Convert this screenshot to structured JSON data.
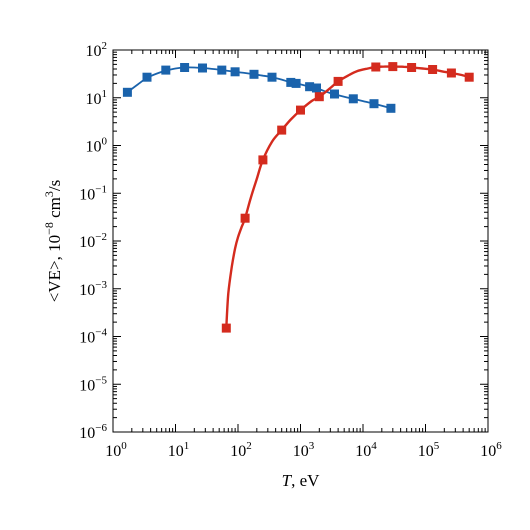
{
  "chart_data": {
    "type": "scatter",
    "xscale": "log",
    "yscale": "log",
    "xlim": [
      1,
      1000000
    ],
    "ylim": [
      1e-06,
      100
    ],
    "grid": false,
    "xlabel": {
      "italic": "T",
      "rest": ", eV"
    },
    "ylabel": {
      "main": "<VE>, 10",
      "exp": "−8",
      "tail": " cm",
      "exp2": "3",
      "tail2": "/s"
    },
    "x_ticks": [
      {
        "value": 1,
        "base": "10",
        "exp": "0"
      },
      {
        "value": 10,
        "base": "10",
        "exp": "1"
      },
      {
        "value": 100,
        "base": "10",
        "exp": "2"
      },
      {
        "value": 1000,
        "base": "10",
        "exp": "3"
      },
      {
        "value": 10000,
        "base": "10",
        "exp": "4"
      },
      {
        "value": 100000,
        "base": "10",
        "exp": "5"
      },
      {
        "value": 1000000,
        "base": "10",
        "exp": "6"
      }
    ],
    "y_ticks": [
      {
        "value": 1e-06,
        "base": "10",
        "exp": "−6"
      },
      {
        "value": 1e-05,
        "base": "10",
        "exp": "−5"
      },
      {
        "value": 0.0001,
        "base": "10",
        "exp": "−4"
      },
      {
        "value": 0.001,
        "base": "10",
        "exp": "−3"
      },
      {
        "value": 0.01,
        "base": "10",
        "exp": "−2"
      },
      {
        "value": 0.1,
        "base": "10",
        "exp": "−1"
      },
      {
        "value": 1,
        "base": "10",
        "exp": "0"
      },
      {
        "value": 10,
        "base": "10",
        "exp": "1"
      },
      {
        "value": 100,
        "base": "10",
        "exp": "2"
      }
    ],
    "series": [
      {
        "color": "#1a63ac",
        "marker": "square",
        "points": [
          [
            1.7,
            13
          ],
          [
            3.5,
            27
          ],
          [
            7,
            38
          ],
          [
            14,
            43
          ],
          [
            27,
            42
          ],
          [
            55,
            38
          ],
          [
            90,
            35
          ],
          [
            180,
            31
          ],
          [
            350,
            27
          ],
          [
            700,
            21
          ],
          [
            850,
            20
          ],
          [
            1400,
            17
          ],
          [
            1800,
            16
          ],
          [
            3500,
            12
          ],
          [
            7000,
            9.5
          ],
          [
            15000,
            7.5
          ],
          [
            28000,
            6
          ]
        ],
        "curve": [
          [
            1.7,
            13
          ],
          [
            2.5,
            19
          ],
          [
            3.5,
            26
          ],
          [
            5,
            32
          ],
          [
            7,
            37
          ],
          [
            10,
            41
          ],
          [
            14,
            43
          ],
          [
            20,
            43
          ],
          [
            27,
            42
          ],
          [
            40,
            40
          ],
          [
            55,
            38
          ],
          [
            90,
            35
          ],
          [
            130,
            33
          ],
          [
            180,
            31
          ],
          [
            250,
            29
          ],
          [
            350,
            27
          ],
          [
            500,
            24
          ],
          [
            700,
            21
          ],
          [
            1000,
            19
          ],
          [
            1400,
            17
          ],
          [
            2000,
            15
          ],
          [
            3000,
            12.5
          ],
          [
            5000,
            10.5
          ],
          [
            7000,
            9.5
          ],
          [
            10000,
            8.5
          ],
          [
            15000,
            7.5
          ],
          [
            20000,
            6.8
          ],
          [
            28000,
            6
          ]
        ]
      },
      {
        "color": "#d42b1e",
        "marker": "square",
        "points": [
          [
            65,
            0.00015
          ],
          [
            130,
            0.03
          ],
          [
            250,
            0.5
          ],
          [
            500,
            2.1
          ],
          [
            1000,
            5.5
          ],
          [
            2000,
            10.5
          ],
          [
            4000,
            22
          ],
          [
            16000,
            44
          ],
          [
            30000,
            45
          ],
          [
            60000,
            43
          ],
          [
            130000,
            39
          ],
          [
            260000,
            33
          ],
          [
            500000,
            27
          ]
        ],
        "curve": [
          [
            65,
            0.00015
          ],
          [
            70,
            0.0008
          ],
          [
            80,
            0.003
          ],
          [
            90,
            0.007
          ],
          [
            100,
            0.012
          ],
          [
            115,
            0.02
          ],
          [
            130,
            0.03
          ],
          [
            160,
            0.08
          ],
          [
            200,
            0.2
          ],
          [
            250,
            0.5
          ],
          [
            350,
            1.2
          ],
          [
            500,
            2.1
          ],
          [
            700,
            3.5
          ],
          [
            1000,
            5.5
          ],
          [
            1500,
            8.5
          ],
          [
            2000,
            10.5
          ],
          [
            3000,
            16
          ],
          [
            4000,
            22
          ],
          [
            6000,
            30
          ],
          [
            8000,
            36
          ],
          [
            12000,
            41
          ],
          [
            16000,
            44
          ],
          [
            22000,
            45
          ],
          [
            30000,
            45
          ],
          [
            45000,
            44.5
          ],
          [
            60000,
            43
          ],
          [
            90000,
            41
          ],
          [
            130000,
            39
          ],
          [
            200000,
            35
          ],
          [
            260000,
            33
          ],
          [
            380000,
            30
          ],
          [
            500000,
            27
          ]
        ]
      }
    ]
  }
}
